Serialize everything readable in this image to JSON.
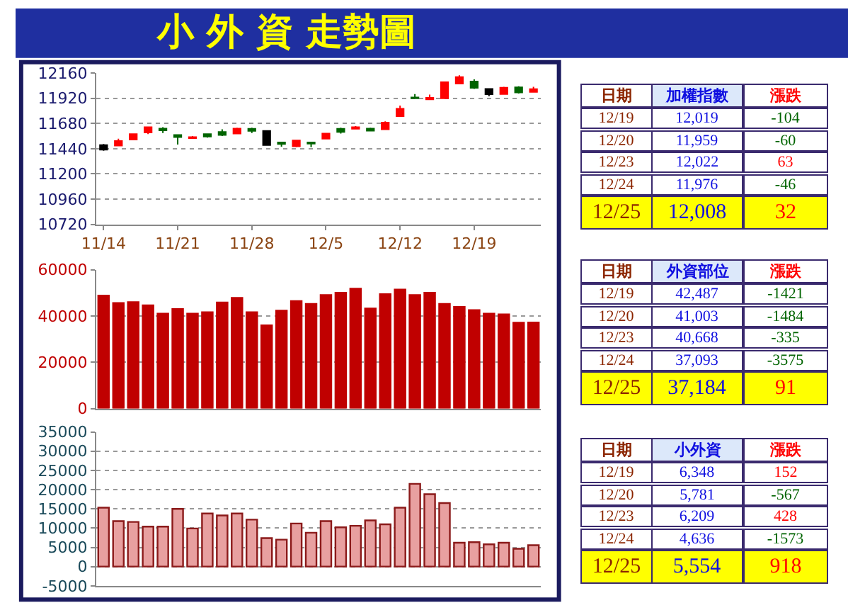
{
  "chart_data": [
    {
      "type": "candlestick",
      "title": "小 外 資 走勢圖",
      "categories": [
        "11/14",
        null,
        null,
        null,
        null,
        "11/21",
        null,
        null,
        null,
        null,
        "11/28",
        null,
        null,
        null,
        null,
        "12/5",
        null,
        null,
        null,
        null,
        "12/12",
        null,
        null,
        null,
        null,
        "12/19",
        null,
        null,
        null,
        null
      ],
      "ohlc": [
        [
          11475,
          11485,
          11420,
          11430
        ],
        [
          11470,
          11535,
          11465,
          11514
        ],
        [
          11527,
          11585,
          11520,
          11580
        ],
        [
          11595,
          11650,
          11580,
          11645
        ],
        [
          11632,
          11645,
          11590,
          11615
        ],
        [
          11571,
          11575,
          11480,
          11550
        ],
        [
          11540,
          11560,
          11535,
          11550
        ],
        [
          11580,
          11585,
          11545,
          11555
        ],
        [
          11600,
          11625,
          11560,
          11570
        ],
        [
          11585,
          11640,
          11580,
          11632
        ],
        [
          11630,
          11640,
          11590,
          11610
        ],
        [
          11610,
          11615,
          11470,
          11475
        ],
        [
          11500,
          11505,
          11460,
          11485
        ],
        [
          11462,
          11525,
          11455,
          11518
        ],
        [
          11500,
          11505,
          11455,
          11488
        ],
        [
          11536,
          11590,
          11530,
          11584
        ],
        [
          11630,
          11640,
          11585,
          11600
        ],
        [
          11630,
          11655,
          11625,
          11645
        ],
        [
          11632,
          11640,
          11610,
          11612
        ],
        [
          11625,
          11700,
          11620,
          11689
        ],
        [
          11750,
          11850,
          11745,
          11820
        ],
        [
          11928,
          11960,
          11915,
          11920
        ],
        [
          11910,
          11955,
          11905,
          11925
        ],
        [
          11920,
          12075,
          11915,
          12073
        ],
        [
          12060,
          12140,
          12055,
          12123
        ],
        [
          12080,
          12100,
          12010,
          12019
        ],
        [
          12010,
          12015,
          11940,
          11959
        ],
        [
          11960,
          12030,
          11955,
          12022
        ],
        [
          12025,
          12035,
          11965,
          11976
        ],
        [
          11980,
          12030,
          11975,
          12008
        ]
      ],
      "colors": [
        "#000000",
        "#ff0000",
        "#ff0000",
        "#ff0000",
        "#006400",
        "#006400",
        "#ff0000",
        "#006400",
        "#006400",
        "#ff0000",
        "#006400",
        "#000000",
        "#006400",
        "#ff0000",
        "#006400",
        "#ff0000",
        "#006400",
        "#ff0000",
        "#006400",
        "#ff0000",
        "#ff0000",
        "#006400",
        "#ff0000",
        "#ff0000",
        "#ff0000",
        "#006400",
        "#000000",
        "#ff0000",
        "#006400",
        "#ff0000"
      ],
      "ylim": [
        10720,
        12160
      ],
      "yticks": [
        10720,
        10960,
        11200,
        11440,
        11680,
        11920,
        12160
      ],
      "grid": "y"
    },
    {
      "type": "other",
      "categories": [
        "日期",
        "加權指數",
        "漲跌"
      ],
      "cell_labels": [
        [
          "12/19",
          "12,019",
          "-104"
        ],
        [
          "12/20",
          "11,959",
          "-60"
        ],
        [
          "12/23",
          "12,022",
          "63"
        ],
        [
          "12/24",
          "11,976",
          "-46"
        ],
        [
          "12/25",
          "12,008",
          "32"
        ]
      ]
    },
    {
      "type": "bar",
      "categories": [
        null,
        null,
        null,
        null,
        null,
        null,
        null,
        null,
        null,
        null,
        null,
        null,
        null,
        null,
        null,
        null,
        null,
        null,
        null,
        null,
        null,
        null,
        null,
        null,
        null,
        null,
        null,
        null,
        null,
        null
      ],
      "values": [
        48800,
        45600,
        46000,
        44600,
        41000,
        43000,
        41000,
        41600,
        45800,
        47800,
        41600,
        35900,
        42300,
        46400,
        45200,
        49000,
        50000,
        51800,
        43200,
        49400,
        51400,
        49000,
        50000,
        45200,
        43900,
        42487,
        41003,
        40668,
        37093,
        37184
      ],
      "color": "#c00000",
      "ylim": [
        0,
        60000
      ],
      "yticks": [
        0,
        20000,
        40000,
        60000
      ],
      "grid": "y",
      "tick_labels": "y"
    },
    {
      "type": "other",
      "categories": [
        "日期",
        "外資部位",
        "漲跌"
      ],
      "cell_labels": [
        [
          "12/19",
          "42,487",
          "-1421"
        ],
        [
          "12/20",
          "41,003",
          "-1484"
        ],
        [
          "12/23",
          "40,668",
          "-335"
        ],
        [
          "12/24",
          "37,093",
          "-3575"
        ],
        [
          "12/25",
          "37,184",
          "91"
        ]
      ]
    },
    {
      "type": "bar",
      "categories": [
        null,
        null,
        null,
        null,
        null,
        null,
        null,
        null,
        null,
        null,
        null,
        null,
        null,
        null,
        null,
        null,
        null,
        null,
        null,
        null,
        null,
        null,
        null,
        null,
        null,
        null,
        null,
        null,
        null,
        null
      ],
      "values": [
        15300,
        11800,
        11600,
        10400,
        10400,
        15000,
        9900,
        13800,
        13300,
        13800,
        12200,
        7400,
        7000,
        11200,
        8800,
        11800,
        10200,
        10600,
        12000,
        11000,
        15300,
        21500,
        18800,
        16500,
        6200,
        6348,
        5781,
        6209,
        4636,
        5554
      ],
      "color": "#e8a0a0",
      "ylim": [
        -5000,
        35000
      ],
      "yticks": [
        -5000,
        0,
        5000,
        10000,
        15000,
        20000,
        25000,
        30000,
        35000
      ],
      "grid": "y",
      "tick_labels": "y"
    },
    {
      "type": "other",
      "categories": [
        "日期",
        "小外資",
        "漲跌"
      ],
      "cell_labels": [
        [
          "12/19",
          "6,348",
          "152"
        ],
        [
          "12/20",
          "5,781",
          "-567"
        ],
        [
          "12/23",
          "6,209",
          "428"
        ],
        [
          "12/24",
          "4,636",
          "-1573"
        ],
        [
          "12/25",
          "5,554",
          "918"
        ]
      ]
    }
  ]
}
